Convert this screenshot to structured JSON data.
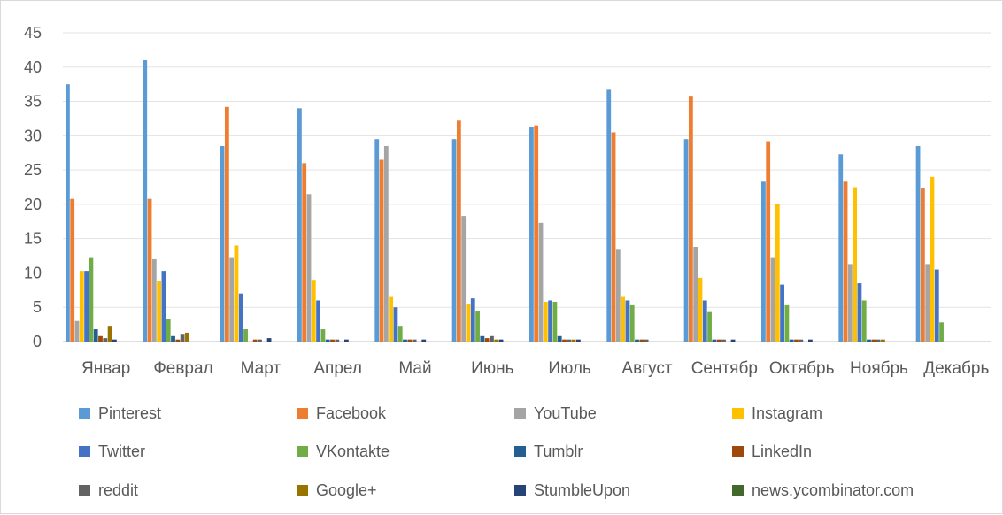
{
  "chart_data": {
    "type": "bar",
    "categories": [
      "Январ",
      "Феврал",
      "Март",
      "Апрел",
      "Май",
      "Июнь",
      "Июль",
      "Август",
      "Сентябр",
      "Октябрь",
      "Ноябрь",
      "Декабрь"
    ],
    "ylim": [
      0,
      45
    ],
    "yticks": [
      0,
      5,
      10,
      15,
      20,
      25,
      30,
      35,
      40,
      45
    ],
    "grid": true,
    "legend": "bottom",
    "series": [
      {
        "name": "Pinterest",
        "color": "#5b9bd5",
        "values": [
          37.5,
          41,
          28.5,
          34,
          29.5,
          29.5,
          31.2,
          36.7,
          29.5,
          23.3,
          27.3,
          28.5
        ]
      },
      {
        "name": "Facebook",
        "color": "#ed7d31",
        "values": [
          20.8,
          20.8,
          34.2,
          26,
          26.5,
          32.2,
          31.5,
          30.5,
          35.7,
          29.2,
          23.3,
          22.3
        ]
      },
      {
        "name": "YouTube",
        "color": "#a5a5a5",
        "values": [
          3,
          12,
          12.3,
          21.5,
          28.5,
          18.3,
          17.3,
          13.5,
          13.8,
          12.3,
          11.3,
          11.3
        ]
      },
      {
        "name": "Instagram",
        "color": "#ffc000",
        "values": [
          10.3,
          8.8,
          14,
          9,
          6.5,
          5.5,
          5.8,
          6.5,
          9.3,
          20,
          22.5,
          24
        ]
      },
      {
        "name": "Twitter",
        "color": "#4472c4",
        "values": [
          10.3,
          10.3,
          7,
          6,
          5,
          6.3,
          6,
          6,
          6,
          8.3,
          8.5,
          10.5
        ]
      },
      {
        "name": "VKontakte",
        "color": "#70ad47",
        "values": [
          12.3,
          3.3,
          1.8,
          1.8,
          2.3,
          4.5,
          5.8,
          5.3,
          4.3,
          5.3,
          6,
          2.8
        ]
      },
      {
        "name": "Tumblr",
        "color": "#255e91",
        "values": [
          1.8,
          0.8,
          0,
          0.3,
          0.3,
          0.8,
          0.8,
          0.3,
          0.3,
          0.3,
          0.3,
          0
        ]
      },
      {
        "name": "LinkedIn",
        "color": "#9e480e",
        "values": [
          0.8,
          0.3,
          0.3,
          0.3,
          0.3,
          0.5,
          0.3,
          0.3,
          0.3,
          0.3,
          0.3,
          0
        ]
      },
      {
        "name": "reddit",
        "color": "#636363",
        "values": [
          0.5,
          1,
          0.3,
          0.3,
          0.3,
          0.8,
          0.3,
          0.3,
          0.3,
          0.3,
          0.3,
          0
        ]
      },
      {
        "name": "Google+",
        "color": "#997300",
        "values": [
          2.3,
          1.3,
          0,
          0,
          0,
          0.3,
          0.3,
          0,
          0,
          0,
          0.3,
          0
        ]
      },
      {
        "name": "StumbleUpon",
        "color": "#264478",
        "values": [
          0.3,
          0,
          0.5,
          0.3,
          0.3,
          0.3,
          0.3,
          0,
          0.3,
          0.3,
          0,
          0
        ]
      },
      {
        "name": "news.ycombinator.com",
        "color": "#43682b",
        "values": [
          0,
          0,
          0,
          0,
          0,
          0,
          0,
          0,
          0,
          0,
          0,
          0
        ]
      }
    ]
  }
}
